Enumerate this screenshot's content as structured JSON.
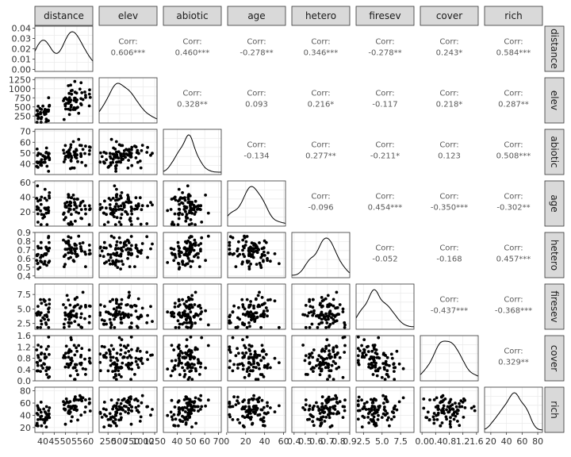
{
  "chart_data": {
    "type": "scatter-matrix",
    "variables": [
      "distance",
      "elev",
      "abiotic",
      "age",
      "hetero",
      "firesev",
      "cover",
      "rich"
    ],
    "corr_label": "Corr:",
    "correlations": [
      {
        "row": "elev",
        "col": "distance",
        "value": "0.606***"
      },
      {
        "row": "abiotic",
        "col": "distance",
        "value": "0.460***"
      },
      {
        "row": "age",
        "col": "distance",
        "value": "-0.278**"
      },
      {
        "row": "hetero",
        "col": "distance",
        "value": "0.346***"
      },
      {
        "row": "firesev",
        "col": "distance",
        "value": "-0.278**"
      },
      {
        "row": "cover",
        "col": "distance",
        "value": "0.243*"
      },
      {
        "row": "rich",
        "col": "distance",
        "value": "0.584***"
      },
      {
        "row": "abiotic",
        "col": "elev",
        "value": "0.328**"
      },
      {
        "row": "age",
        "col": "elev",
        "value": "0.093"
      },
      {
        "row": "hetero",
        "col": "elev",
        "value": "0.216*"
      },
      {
        "row": "firesev",
        "col": "elev",
        "value": "-0.117"
      },
      {
        "row": "cover",
        "col": "elev",
        "value": "0.218*"
      },
      {
        "row": "rich",
        "col": "elev",
        "value": "0.287**"
      },
      {
        "row": "age",
        "col": "abiotic",
        "value": "-0.134"
      },
      {
        "row": "hetero",
        "col": "abiotic",
        "value": "0.277**"
      },
      {
        "row": "firesev",
        "col": "abiotic",
        "value": "-0.211*"
      },
      {
        "row": "cover",
        "col": "abiotic",
        "value": "0.123"
      },
      {
        "row": "rich",
        "col": "abiotic",
        "value": "0.508***"
      },
      {
        "row": "hetero",
        "col": "age",
        "value": "-0.096"
      },
      {
        "row": "firesev",
        "col": "age",
        "value": "0.454***"
      },
      {
        "row": "cover",
        "col": "age",
        "value": "-0.350***"
      },
      {
        "row": "rich",
        "col": "age",
        "value": "-0.302**"
      },
      {
        "row": "firesev",
        "col": "hetero",
        "value": "-0.052"
      },
      {
        "row": "cover",
        "col": "hetero",
        "value": "-0.168"
      },
      {
        "row": "rich",
        "col": "hetero",
        "value": "0.457***"
      },
      {
        "row": "cover",
        "col": "firesev",
        "value": "-0.437***"
      },
      {
        "row": "rich",
        "col": "firesev",
        "value": "-0.368***"
      },
      {
        "row": "rich",
        "col": "cover",
        "value": "0.329**"
      }
    ],
    "y_axes": [
      {
        "variable": "distance",
        "range": [
          -0.002,
          0.042
        ],
        "ticks": [
          "0.00",
          "0.01",
          "0.02",
          "0.03",
          "0.04"
        ],
        "tick_values": [
          0,
          0.01,
          0.02,
          0.03,
          0.04
        ]
      },
      {
        "variable": "elev",
        "range": [
          60,
          1300
        ],
        "ticks": [
          "250",
          "500",
          "750",
          "1000",
          "1250"
        ],
        "tick_values": [
          250,
          500,
          750,
          1000,
          1250
        ]
      },
      {
        "variable": "abiotic",
        "range": [
          30,
          72
        ],
        "ticks": [
          "40",
          "50",
          "60",
          "70"
        ],
        "tick_values": [
          40,
          50,
          60,
          70
        ]
      },
      {
        "variable": "age",
        "range": [
          1,
          62
        ],
        "ticks": [
          "20",
          "40",
          "60"
        ],
        "tick_values": [
          20,
          40,
          60
        ]
      },
      {
        "variable": "hetero",
        "range": [
          0.38,
          0.9
        ],
        "ticks": [
          "0.4",
          "0.5",
          "0.6",
          "0.7",
          "0.8",
          "0.9"
        ],
        "tick_values": [
          0.4,
          0.5,
          0.6,
          0.7,
          0.8,
          0.9
        ]
      },
      {
        "variable": "firesev",
        "range": [
          1.5,
          9.3
        ],
        "ticks": [
          "2.5",
          "5.0",
          "7.5"
        ],
        "tick_values": [
          2.5,
          5.0,
          7.5
        ]
      },
      {
        "variable": "cover",
        "range": [
          0.0,
          1.6
        ],
        "ticks": [
          "0.0",
          "0.4",
          "0.8",
          "1.2",
          "1.6"
        ],
        "tick_values": [
          0.0,
          0.4,
          0.8,
          1.2,
          1.6
        ]
      },
      {
        "variable": "rich",
        "range": [
          12,
          86
        ],
        "ticks": [
          "20",
          "40",
          "60",
          "80"
        ],
        "tick_values": [
          20,
          40,
          60,
          80
        ]
      }
    ],
    "x_axes": [
      {
        "variable": "distance",
        "range": [
          36.5,
          62
        ],
        "ticks": [
          "40",
          "45",
          "50",
          "55",
          "60"
        ],
        "tick_values": [
          40,
          45,
          50,
          55,
          60
        ]
      },
      {
        "variable": "elev",
        "range": [
          60,
          1300
        ],
        "ticks": [
          "250",
          "500",
          "750",
          "1000",
          "1250"
        ],
        "tick_values": [
          250,
          500,
          750,
          1000,
          1250
        ]
      },
      {
        "variable": "abiotic",
        "range": [
          30,
          72
        ],
        "ticks": [
          "40",
          "50",
          "60",
          "70"
        ],
        "tick_values": [
          40,
          50,
          60,
          70
        ]
      },
      {
        "variable": "age",
        "range": [
          1,
          62
        ],
        "ticks": [
          "0",
          "20",
          "40",
          "60"
        ],
        "tick_values": [
          0,
          20,
          40,
          60
        ]
      },
      {
        "variable": "hetero",
        "range": [
          0.38,
          0.9
        ],
        "ticks": [
          "0.4",
          "0.5",
          "0.6",
          "0.7",
          "0.8",
          "0.9"
        ],
        "tick_values": [
          0.4,
          0.5,
          0.6,
          0.7,
          0.8,
          0.9
        ]
      },
      {
        "variable": "firesev",
        "range": [
          1.5,
          9.3
        ],
        "ticks": [
          "2.5",
          "5.0",
          "7.5"
        ],
        "tick_values": [
          2.5,
          5.0,
          7.5
        ]
      },
      {
        "variable": "cover",
        "range": [
          -0.05,
          1.65
        ],
        "ticks": [
          "0.0",
          "0.4",
          "0.8",
          "1.2",
          "1.6"
        ],
        "tick_values": [
          0.0,
          0.4,
          0.8,
          1.2,
          1.6
        ]
      },
      {
        "variable": "rich",
        "range": [
          12,
          86
        ],
        "ticks": [
          "20",
          "40",
          "60",
          "80"
        ],
        "tick_values": [
          20,
          40,
          60,
          80
        ]
      }
    ],
    "n_points": 90,
    "point_color": "#000000",
    "panel_border_color": "#333333",
    "grid_color": "#ebebeb",
    "strip_fill": "#d9d9d9",
    "grid": true
  }
}
